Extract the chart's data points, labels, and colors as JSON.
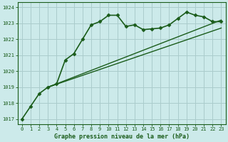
{
  "title": "Graphe pression niveau de la mer (hPa)",
  "background_color": "#cceaea",
  "grid_color": "#aacccc",
  "line_color": "#1a5c1a",
  "xlim": [
    -0.5,
    23.5
  ],
  "ylim": [
    1016.7,
    1024.3
  ],
  "yticks": [
    1017,
    1018,
    1019,
    1020,
    1021,
    1022,
    1023,
    1024
  ],
  "xticks": [
    0,
    1,
    2,
    3,
    4,
    5,
    6,
    7,
    8,
    9,
    10,
    11,
    12,
    13,
    14,
    15,
    16,
    17,
    18,
    19,
    20,
    21,
    22,
    23
  ],
  "series": [
    {
      "x": [
        0,
        1,
        2,
        3,
        4,
        5,
        6,
        7,
        8,
        9,
        10,
        11,
        12,
        13,
        14,
        15,
        16,
        17,
        18,
        19,
        20,
        21,
        22,
        23
      ],
      "y": [
        1017.0,
        1017.8,
        1018.6,
        1019.0,
        1019.2,
        1020.7,
        1021.1,
        1022.0,
        1022.9,
        1023.1,
        1023.5,
        1023.5,
        1022.8,
        1022.9,
        1022.6,
        1022.65,
        1022.7,
        1022.9,
        1023.3,
        1023.7,
        1023.5,
        1023.4,
        1023.1,
        1023.1
      ],
      "marker": "D",
      "markersize": 2.5,
      "linewidth": 1.2
    },
    {
      "x": [
        3,
        23
      ],
      "y": [
        1019.0,
        1022.7
      ],
      "marker": null,
      "markersize": 0,
      "linewidth": 1.0
    },
    {
      "x": [
        3,
        23
      ],
      "y": [
        1019.0,
        1023.2
      ],
      "marker": null,
      "markersize": 0,
      "linewidth": 1.0
    }
  ],
  "title_fontsize": 6.0,
  "tick_fontsize": 5.0
}
